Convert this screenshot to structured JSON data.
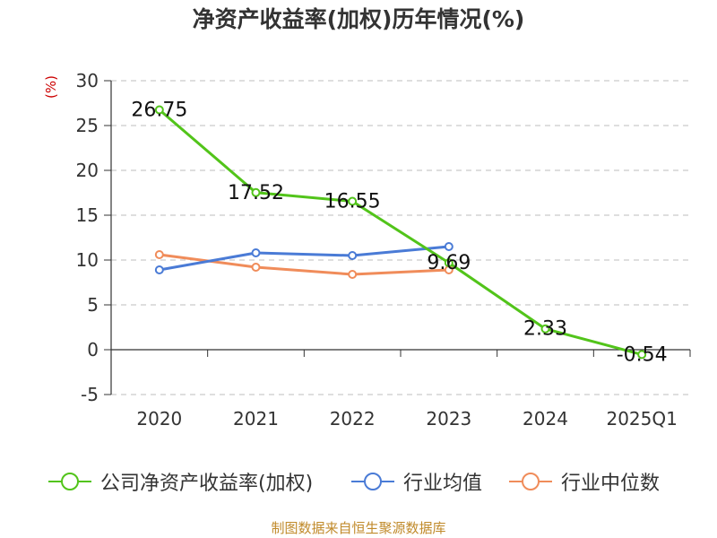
{
  "chart_data": {
    "type": "line",
    "title": "净资产收益率(加权)历年情况(%)",
    "ylabel": "(%)",
    "categories": [
      "2020",
      "2021",
      "2022",
      "2023",
      "2024",
      "2025Q1"
    ],
    "ylim": [
      -5,
      30
    ],
    "yticks": [
      -5,
      0,
      5,
      10,
      15,
      20,
      25,
      30
    ],
    "grid": true,
    "legend_position": "bottom",
    "series": [
      {
        "name": "公司净资产收益率(加权)",
        "color": "#52c41a",
        "values": [
          26.75,
          17.52,
          16.55,
          9.69,
          2.33,
          -0.54
        ],
        "labels": [
          "26.75",
          "17.52",
          "16.55",
          "9.69",
          "2.33",
          "-0.54"
        ]
      },
      {
        "name": "行业均值",
        "color": "#4a7bd6",
        "values": [
          8.9,
          10.8,
          10.5,
          11.5,
          null,
          null
        ]
      },
      {
        "name": "行业中位数",
        "color": "#f08c5a",
        "values": [
          10.6,
          9.2,
          8.4,
          8.9,
          null,
          null
        ]
      }
    ]
  },
  "footer": {
    "source": "制图数据来自恒生聚源数据库"
  }
}
